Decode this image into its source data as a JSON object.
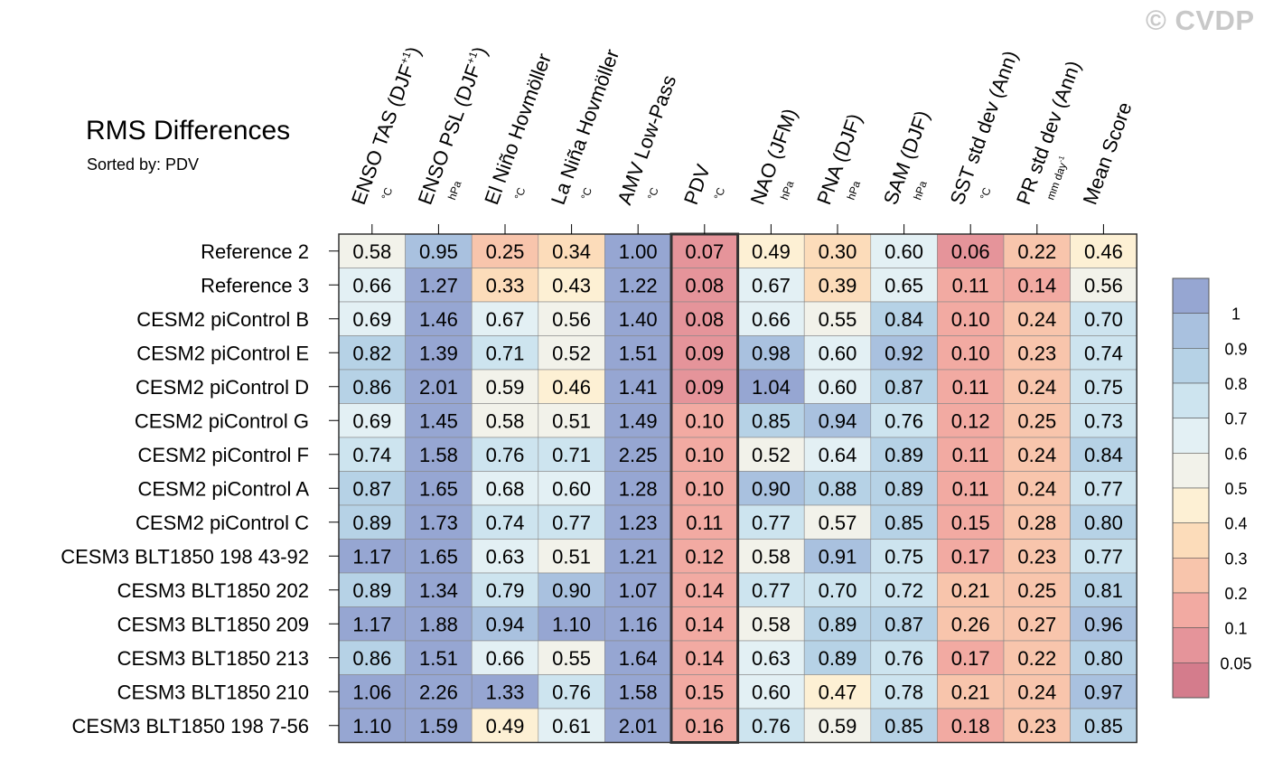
{
  "watermark": "© CVDP",
  "title": "RMS Differences",
  "subtitle": "Sorted by: PDV",
  "chart_data": {
    "type": "heatmap",
    "title": "RMS Differences",
    "subtitle": "Sorted by: PDV",
    "sorted_by": "PDV",
    "highlight_column": "PDV",
    "columns": [
      {
        "name": "ENSO TAS (DJF",
        "sup": "+1",
        "close": ")",
        "unit": "°C"
      },
      {
        "name": "ENSO PSL (DJF",
        "sup": "+1",
        "close": ")",
        "unit": "hPa"
      },
      {
        "name": "El Niño Hovmöller",
        "sup": "",
        "close": "",
        "unit": "°C"
      },
      {
        "name": "La Niña Hovmöller",
        "sup": "",
        "close": "",
        "unit": "°C"
      },
      {
        "name": "AMV Low-Pass",
        "sup": "",
        "close": "",
        "unit": "°C"
      },
      {
        "name": "PDV",
        "sup": "",
        "close": "",
        "unit": "°C"
      },
      {
        "name": "NAO (JFM)",
        "sup": "",
        "close": "",
        "unit": "hPa"
      },
      {
        "name": "PNA (DJF)",
        "sup": "",
        "close": "",
        "unit": "hPa"
      },
      {
        "name": "SAM (DJF)",
        "sup": "",
        "close": "",
        "unit": "hPa"
      },
      {
        "name": "SST std dev (Ann)",
        "sup": "",
        "close": "",
        "unit": "°C"
      },
      {
        "name": "PR std dev (Ann)",
        "sup": "",
        "close": "",
        "unit": "mm day",
        "unit_sup": "-1"
      },
      {
        "name": "Mean Score",
        "sup": "",
        "close": "",
        "unit": ""
      }
    ],
    "rows": [
      "Reference 2",
      "Reference 3",
      "CESM2 piControl B",
      "CESM2 piControl E",
      "CESM2 piControl D",
      "CESM2 piControl G",
      "CESM2 piControl F",
      "CESM2 piControl A",
      "CESM2 piControl C",
      "CESM3 BLT1850 198 43-92",
      "CESM3 BLT1850 202",
      "CESM3 BLT1850 209",
      "CESM3 BLT1850 213",
      "CESM3 BLT1850 210",
      "CESM3 BLT1850 198 7-56"
    ],
    "values": [
      [
        "0.58",
        "0.95",
        "0.25",
        "0.34",
        "1.00",
        "0.07",
        "0.49",
        "0.30",
        "0.60",
        "0.06",
        "0.22",
        "0.46"
      ],
      [
        "0.66",
        "1.27",
        "0.33",
        "0.43",
        "1.22",
        "0.08",
        "0.67",
        "0.39",
        "0.65",
        "0.11",
        "0.14",
        "0.56"
      ],
      [
        "0.69",
        "1.46",
        "0.67",
        "0.56",
        "1.40",
        "0.08",
        "0.66",
        "0.55",
        "0.84",
        "0.10",
        "0.24",
        "0.70"
      ],
      [
        "0.82",
        "1.39",
        "0.71",
        "0.52",
        "1.51",
        "0.09",
        "0.98",
        "0.60",
        "0.92",
        "0.10",
        "0.23",
        "0.74"
      ],
      [
        "0.86",
        "2.01",
        "0.59",
        "0.46",
        "1.41",
        "0.09",
        "1.04",
        "0.60",
        "0.87",
        "0.11",
        "0.24",
        "0.75"
      ],
      [
        "0.69",
        "1.45",
        "0.58",
        "0.51",
        "1.49",
        "0.10",
        "0.85",
        "0.94",
        "0.76",
        "0.12",
        "0.25",
        "0.73"
      ],
      [
        "0.74",
        "1.58",
        "0.76",
        "0.71",
        "2.25",
        "0.10",
        "0.52",
        "0.64",
        "0.89",
        "0.11",
        "0.24",
        "0.84"
      ],
      [
        "0.87",
        "1.65",
        "0.68",
        "0.60",
        "1.28",
        "0.10",
        "0.90",
        "0.88",
        "0.89",
        "0.11",
        "0.24",
        "0.77"
      ],
      [
        "0.89",
        "1.73",
        "0.74",
        "0.77",
        "1.23",
        "0.11",
        "0.77",
        "0.57",
        "0.85",
        "0.15",
        "0.28",
        "0.80"
      ],
      [
        "1.17",
        "1.65",
        "0.63",
        "0.51",
        "1.21",
        "0.12",
        "0.58",
        "0.91",
        "0.75",
        "0.17",
        "0.23",
        "0.77"
      ],
      [
        "0.89",
        "1.34",
        "0.79",
        "0.90",
        "1.07",
        "0.14",
        "0.77",
        "0.70",
        "0.72",
        "0.21",
        "0.25",
        "0.81"
      ],
      [
        "1.17",
        "1.88",
        "0.94",
        "1.10",
        "1.16",
        "0.14",
        "0.58",
        "0.89",
        "0.87",
        "0.26",
        "0.27",
        "0.96"
      ],
      [
        "0.86",
        "1.51",
        "0.66",
        "0.55",
        "1.64",
        "0.14",
        "0.63",
        "0.89",
        "0.76",
        "0.17",
        "0.22",
        "0.80"
      ],
      [
        "1.06",
        "2.26",
        "1.33",
        "0.76",
        "1.58",
        "0.15",
        "0.60",
        "0.47",
        "0.78",
        "0.21",
        "0.24",
        "0.97"
      ],
      [
        "1.10",
        "1.59",
        "0.49",
        "0.61",
        "2.01",
        "0.16",
        "0.76",
        "0.59",
        "0.85",
        "0.18",
        "0.23",
        "0.85"
      ]
    ],
    "colorbar": {
      "tick_labels": [
        "1",
        "0.9",
        "0.8",
        "0.7",
        "0.6",
        "0.5",
        "0.4",
        "0.3",
        "0.2",
        "0.1",
        "0.05"
      ],
      "levels": [
        0.05,
        0.1,
        0.2,
        0.3,
        0.4,
        0.5,
        0.6,
        0.7,
        0.8,
        0.9,
        1
      ],
      "colors_low_to_high": [
        "#d47c8c",
        "#e5949a",
        "#f2aaa2",
        "#f8c5ac",
        "#fcdcba",
        "#fdf0d4",
        "#f2f2ea",
        "#e3f0f4",
        "#cde4ef",
        "#b6d2e6",
        "#a9c1df",
        "#96a6d2"
      ]
    }
  }
}
